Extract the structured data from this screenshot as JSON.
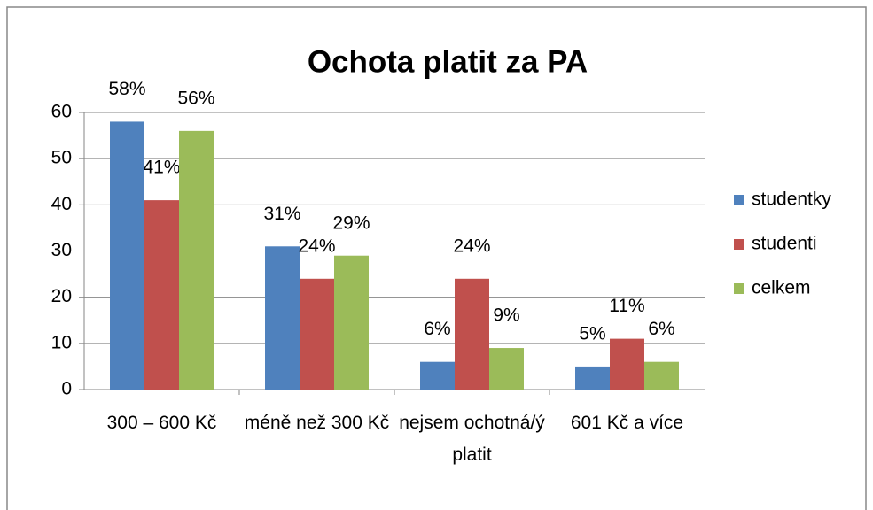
{
  "chart_data": {
    "type": "bar",
    "title": "Ochota platit za PA",
    "categories": [
      "300 – 600 Kč",
      "méně než 300 Kč",
      "nejsem ochotná/ý platit",
      "601 Kč a více"
    ],
    "series": [
      {
        "name": "studentky",
        "color": "#4f81bd",
        "values": [
          58,
          31,
          6,
          5
        ],
        "value_labels": [
          "58%",
          "31%",
          "6%",
          "5%"
        ]
      },
      {
        "name": "studenti",
        "color": "#c0504d",
        "values": [
          41,
          24,
          24,
          11
        ],
        "value_labels": [
          "41%",
          "24%",
          "24%",
          "11%"
        ]
      },
      {
        "name": "celkem",
        "color": "#9bbb59",
        "values": [
          56,
          29,
          9,
          6
        ],
        "value_labels": [
          "56%",
          "29%",
          "9%",
          "6%"
        ]
      }
    ],
    "ylim": [
      0,
      60
    ],
    "yticks": [
      0,
      10,
      20,
      30,
      40,
      50,
      60
    ],
    "grid": true,
    "legend": "right"
  }
}
